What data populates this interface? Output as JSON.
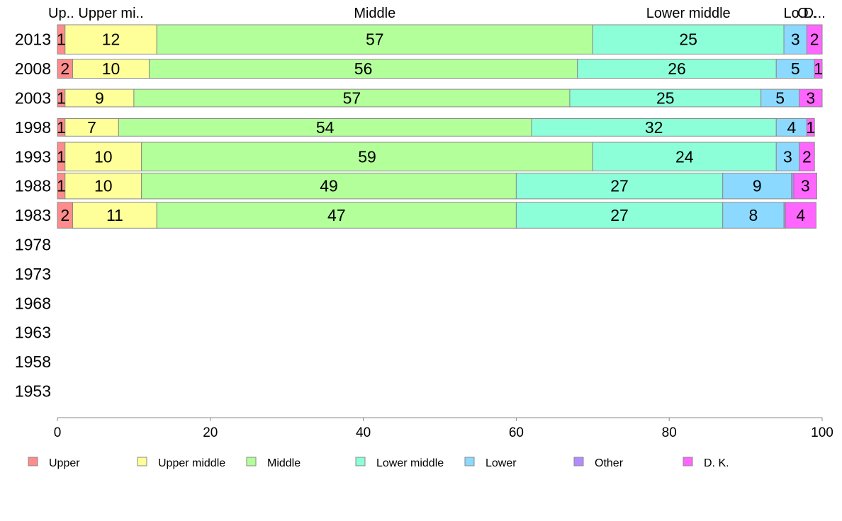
{
  "chart_data": {
    "type": "bar",
    "orientation": "horizontal",
    "stacked": true,
    "title": "",
    "xlabel": "",
    "ylabel": "",
    "xlim": [
      0,
      100
    ],
    "x_ticks": [
      "0",
      "20",
      "40",
      "60",
      "80",
      "100"
    ],
    "grid": false,
    "legend_position": "bottom",
    "categories": [
      "2013",
      "2008",
      "2003",
      "1998",
      "1993",
      "1988",
      "1983",
      "1978",
      "1973",
      "1968",
      "1963",
      "1958",
      "1953"
    ],
    "top_labels": [
      "Up..",
      "Upper mi..",
      "Middle",
      "Lower middle",
      "Lo..",
      "O..",
      "D..."
    ],
    "series": [
      {
        "name": "Upper",
        "color": "#ff8c8c",
        "values": [
          1,
          2,
          1,
          1,
          1,
          1,
          2,
          null,
          null,
          null,
          null,
          null,
          null
        ]
      },
      {
        "name": "Upper middle",
        "color": "#ffff99",
        "values": [
          12,
          10,
          9,
          7,
          10,
          10,
          11,
          null,
          null,
          null,
          null,
          null,
          null
        ]
      },
      {
        "name": "Middle",
        "color": "#b3ff99",
        "values": [
          57,
          56,
          57,
          54,
          59,
          49,
          47,
          null,
          null,
          null,
          null,
          null,
          null
        ]
      },
      {
        "name": "Lower middle",
        "color": "#8cffd9",
        "values": [
          25,
          26,
          25,
          32,
          24,
          27,
          27,
          null,
          null,
          null,
          null,
          null,
          null
        ]
      },
      {
        "name": "Lower",
        "color": "#8cd9ff",
        "values": [
          3,
          5,
          5,
          4,
          3,
          9,
          8,
          null,
          null,
          null,
          null,
          null,
          null
        ]
      },
      {
        "name": "Other",
        "color": "#b38cff",
        "values": [
          0,
          0,
          0,
          0,
          0,
          0.3,
          0.2,
          null,
          null,
          null,
          null,
          null,
          null
        ]
      },
      {
        "name": "D. K.",
        "color": "#ff66ff",
        "values": [
          2,
          1,
          3,
          1,
          2,
          3,
          4,
          null,
          null,
          null,
          null,
          null,
          null
        ]
      }
    ],
    "relative_bar_widths": [
      1.0,
      0.65,
      0.6,
      0.6,
      0.98,
      0.88,
      0.88,
      0,
      0,
      0,
      0,
      0,
      0
    ]
  }
}
